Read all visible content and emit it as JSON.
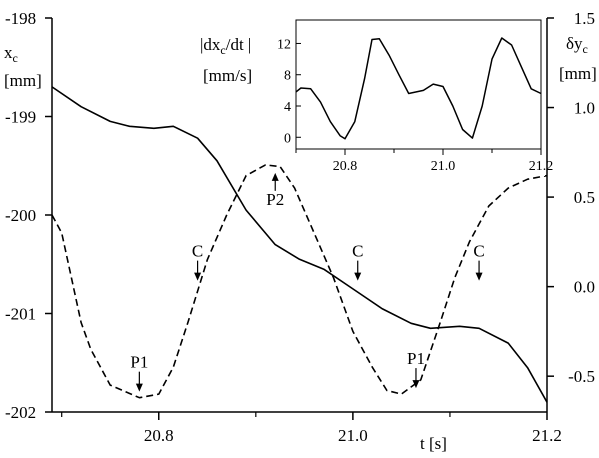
{
  "chart_data": [
    {
      "type": "line",
      "left_axis": {
        "label": "x",
        "label_sub": "c",
        "unit": "[mm]",
        "ylim": [
          -202,
          -198
        ],
        "ticks": [
          -198,
          -199,
          -200,
          -201,
          -202
        ]
      },
      "right_axis": {
        "label": "δy",
        "label_sub": "c",
        "unit": "[mm]",
        "ylim": [
          -0.7,
          1.5
        ],
        "ticks": [
          1.5,
          1.0,
          0.5,
          0.0,
          -0.5
        ],
        "tick_labels": [
          "1.5",
          "1.0",
          "0.5",
          "0.0",
          "-0.5"
        ]
      },
      "x_axis": {
        "label": "t  [s]",
        "xlim": [
          20.69,
          21.2
        ],
        "ticks": [
          20.8,
          21.0,
          21.2
        ],
        "tick_labels": [
          "20.8",
          "21.0",
          "21.2"
        ],
        "minor_ticks": [
          20.7,
          20.9,
          21.1
        ]
      },
      "series": [
        {
          "style": "solid",
          "axis": "left",
          "x": [
            20.69,
            20.72,
            20.75,
            20.77,
            20.795,
            20.815,
            20.84,
            20.86,
            20.89,
            20.92,
            20.945,
            20.97,
            21.0,
            21.03,
            21.06,
            21.08,
            21.11,
            21.13,
            21.16,
            21.18,
            21.2
          ],
          "y": [
            -198.7,
            -198.9,
            -199.05,
            -199.1,
            -199.12,
            -199.1,
            -199.22,
            -199.45,
            -199.95,
            -200.3,
            -200.45,
            -200.55,
            -200.75,
            -200.95,
            -201.1,
            -201.15,
            -201.13,
            -201.15,
            -201.3,
            -201.55,
            -201.9
          ]
        },
        {
          "style": "dashed",
          "axis": "right",
          "x": [
            20.69,
            20.7,
            20.71,
            20.72,
            20.73,
            20.75,
            20.78,
            20.8,
            20.815,
            20.83,
            20.85,
            20.87,
            20.89,
            20.91,
            20.925,
            20.94,
            20.96,
            20.98,
            21.0,
            21.02,
            21.035,
            21.05,
            21.07,
            21.09,
            21.105,
            21.12,
            21.14,
            21.16,
            21.18,
            21.2
          ],
          "y": [
            0.4,
            0.3,
            0.05,
            -0.2,
            -0.35,
            -0.55,
            -0.62,
            -0.6,
            -0.45,
            -0.2,
            0.15,
            0.4,
            0.62,
            0.68,
            0.67,
            0.55,
            0.3,
            0.05,
            -0.25,
            -0.45,
            -0.58,
            -0.6,
            -0.52,
            -0.2,
            0.05,
            0.25,
            0.45,
            0.55,
            0.6,
            0.62
          ]
        }
      ],
      "annotations": [
        {
          "text": "P1",
          "x": 20.78,
          "y": -0.62,
          "axis": "right",
          "arrow": "down"
        },
        {
          "text": "C",
          "x": 20.84,
          "y": 0.0,
          "axis": "right",
          "arrow": "down"
        },
        {
          "text": "P2",
          "x": 20.92,
          "y": 0.68,
          "axis": "right",
          "arrow": "up"
        },
        {
          "text": "C",
          "x": 21.005,
          "y": 0.0,
          "axis": "right",
          "arrow": "down"
        },
        {
          "text": "P1",
          "x": 21.065,
          "y": -0.6,
          "axis": "right",
          "arrow": "down"
        },
        {
          "text": "C",
          "x": 21.13,
          "y": 0.0,
          "axis": "right",
          "arrow": "down"
        }
      ]
    },
    {
      "type": "line",
      "inset": true,
      "ylabel": "|dx",
      "ylabel_sub": "c",
      "ylabel_end": "/dt |",
      "yunit": "[mm/s]",
      "xlim": [
        20.7,
        21.2
      ],
      "ylim": [
        -1.5,
        15
      ],
      "yticks": [
        0,
        4,
        8,
        12
      ],
      "ytick_labels": [
        "0",
        "4",
        "8",
        "12"
      ],
      "xticks": [
        20.8,
        21.0,
        21.2
      ],
      "xtick_labels": [
        "20.8",
        "21.0",
        "21.2"
      ],
      "minor_xticks": [
        20.7,
        20.9,
        21.1
      ],
      "x": [
        20.7,
        20.71,
        20.73,
        20.75,
        20.77,
        20.79,
        20.8,
        20.82,
        20.84,
        20.855,
        20.87,
        20.89,
        20.91,
        20.93,
        20.96,
        20.98,
        21.0,
        21.02,
        21.04,
        21.06,
        21.08,
        21.1,
        21.12,
        21.14,
        21.16,
        21.18,
        21.2
      ],
      "y": [
        5.8,
        6.3,
        6.2,
        4.5,
        2.0,
        0.2,
        -0.2,
        2.0,
        7.5,
        12.5,
        12.6,
        10.5,
        8.0,
        5.6,
        6.0,
        6.8,
        6.5,
        4.0,
        1.0,
        -0.1,
        4.0,
        10.0,
        12.7,
        11.8,
        9.0,
        6.2,
        5.6
      ]
    }
  ]
}
